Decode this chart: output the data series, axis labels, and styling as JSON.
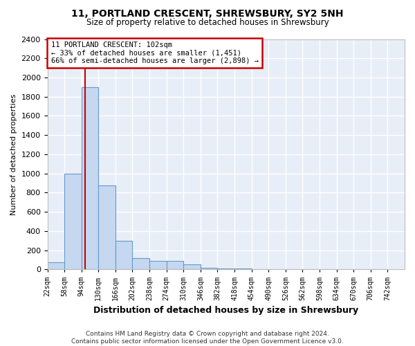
{
  "title": "11, PORTLAND CRESCENT, SHREWSBURY, SY2 5NH",
  "subtitle": "Size of property relative to detached houses in Shrewsbury",
  "xlabel": "Distribution of detached houses by size in Shrewsbury",
  "ylabel": "Number of detached properties",
  "footer_line1": "Contains HM Land Registry data © Crown copyright and database right 2024.",
  "footer_line2": "Contains public sector information licensed under the Open Government Licence v3.0.",
  "bin_edges": [
    22,
    58,
    94,
    130,
    166,
    202,
    238,
    274,
    310,
    346,
    382,
    418,
    454,
    490,
    526,
    562,
    598,
    634,
    670,
    706,
    742
  ],
  "bar_heights": [
    75,
    1000,
    1900,
    875,
    300,
    115,
    90,
    90,
    50,
    20,
    10,
    10,
    2,
    2,
    1,
    0,
    0,
    0,
    0,
    0
  ],
  "bar_color": "#c5d8ef",
  "bar_edge_color": "#6699cc",
  "property_line_x": 102,
  "property_line_color": "#cc0000",
  "annotation_text": "11 PORTLAND CRESCENT: 102sqm\n← 33% of detached houses are smaller (1,451)\n66% of semi-detached houses are larger (2,898) →",
  "annotation_box_color": "#cc0000",
  "ylim": [
    0,
    2400
  ],
  "background_color": "#e8eef8",
  "grid_color": "#ffffff",
  "yticks": [
    0,
    200,
    400,
    600,
    800,
    1000,
    1200,
    1400,
    1600,
    1800,
    2000,
    2200,
    2400
  ],
  "tick_labels": [
    "22sqm",
    "58sqm",
    "94sqm",
    "130sqm",
    "166sqm",
    "202sqm",
    "238sqm",
    "274sqm",
    "310sqm",
    "346sqm",
    "382sqm",
    "418sqm",
    "454sqm",
    "490sqm",
    "526sqm",
    "562sqm",
    "598sqm",
    "634sqm",
    "670sqm",
    "706sqm",
    "742sqm"
  ]
}
